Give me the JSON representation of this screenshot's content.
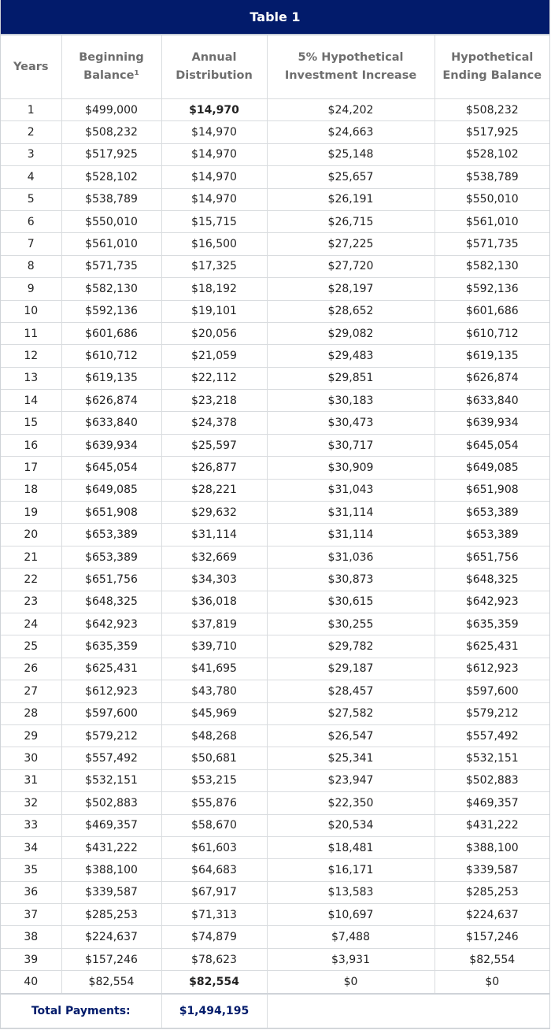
{
  "title": "Table 1",
  "columns": [
    "Years",
    "Beginning Balance¹",
    "Annual Distribution",
    "5% Hypothetical Investment Increase",
    "Hypothetical Ending Balance"
  ],
  "rows": [
    [
      "1",
      "$499,000",
      "$14,970",
      "$24,202",
      "$508,232"
    ],
    [
      "2",
      "$508,232",
      "$14,970",
      "$24,663",
      "$517,925"
    ],
    [
      "3",
      "$517,925",
      "$14,970",
      "$25,148",
      "$528,102"
    ],
    [
      "4",
      "$528,102",
      "$14,970",
      "$25,657",
      "$538,789"
    ],
    [
      "5",
      "$538,789",
      "$14,970",
      "$26,191",
      "$550,010"
    ],
    [
      "6",
      "$550,010",
      "$15,715",
      "$26,715",
      "$561,010"
    ],
    [
      "7",
      "$561,010",
      "$16,500",
      "$27,225",
      "$571,735"
    ],
    [
      "8",
      "$571,735",
      "$17,325",
      "$27,720",
      "$582,130"
    ],
    [
      "9",
      "$582,130",
      "$18,192",
      "$28,197",
      "$592,136"
    ],
    [
      "10",
      "$592,136",
      "$19,101",
      "$28,652",
      "$601,686"
    ],
    [
      "11",
      "$601,686",
      "$20,056",
      "$29,082",
      "$610,712"
    ],
    [
      "12",
      "$610,712",
      "$21,059",
      "$29,483",
      "$619,135"
    ],
    [
      "13",
      "$619,135",
      "$22,112",
      "$29,851",
      "$626,874"
    ],
    [
      "14",
      "$626,874",
      "$23,218",
      "$30,183",
      "$633,840"
    ],
    [
      "15",
      "$633,840",
      "$24,378",
      "$30,473",
      "$639,934"
    ],
    [
      "16",
      "$639,934",
      "$25,597",
      "$30,717",
      "$645,054"
    ],
    [
      "17",
      "$645,054",
      "$26,877",
      "$30,909",
      "$649,085"
    ],
    [
      "18",
      "$649,085",
      "$28,221",
      "$31,043",
      "$651,908"
    ],
    [
      "19",
      "$651,908",
      "$29,632",
      "$31,114",
      "$653,389"
    ],
    [
      "20",
      "$653,389",
      "$31,114",
      "$31,114",
      "$653,389"
    ],
    [
      "21",
      "$653,389",
      "$32,669",
      "$31,036",
      "$651,756"
    ],
    [
      "22",
      "$651,756",
      "$34,303",
      "$30,873",
      "$648,325"
    ],
    [
      "23",
      "$648,325",
      "$36,018",
      "$30,615",
      "$642,923"
    ],
    [
      "24",
      "$642,923",
      "$37,819",
      "$30,255",
      "$635,359"
    ],
    [
      "25",
      "$635,359",
      "$39,710",
      "$29,782",
      "$625,431"
    ],
    [
      "26",
      "$625,431",
      "$41,695",
      "$29,187",
      "$612,923"
    ],
    [
      "27",
      "$612,923",
      "$43,780",
      "$28,457",
      "$597,600"
    ],
    [
      "28",
      "$597,600",
      "$45,969",
      "$27,582",
      "$579,212"
    ],
    [
      "29",
      "$579,212",
      "$48,268",
      "$26,547",
      "$557,492"
    ],
    [
      "30",
      "$557,492",
      "$50,681",
      "$25,341",
      "$532,151"
    ],
    [
      "31",
      "$532,151",
      "$53,215",
      "$23,947",
      "$502,883"
    ],
    [
      "32",
      "$502,883",
      "$55,876",
      "$22,350",
      "$469,357"
    ],
    [
      "33",
      "$469,357",
      "$58,670",
      "$20,534",
      "$431,222"
    ],
    [
      "34",
      "$431,222",
      "$61,603",
      "$18,481",
      "$388,100"
    ],
    [
      "35",
      "$388,100",
      "$64,683",
      "$16,171",
      "$339,587"
    ],
    [
      "36",
      "$339,587",
      "$67,917",
      "$13,583",
      "$285,253"
    ],
    [
      "37",
      "$285,253",
      "$71,313",
      "$10,697",
      "$224,637"
    ],
    [
      "38",
      "$224,637",
      "$74,879",
      "$7,488",
      "$157,246"
    ],
    [
      "39",
      "$157,246",
      "$78,623",
      "$3,931",
      "$82,554"
    ],
    [
      "40",
      "$82,554",
      "$82,554",
      "$0",
      "$0"
    ]
  ],
  "total": {
    "label": "Total Payments:",
    "value": "$1,494,195"
  },
  "colors": {
    "header_bg": "#021b6b",
    "total_text": "#021b6b"
  }
}
